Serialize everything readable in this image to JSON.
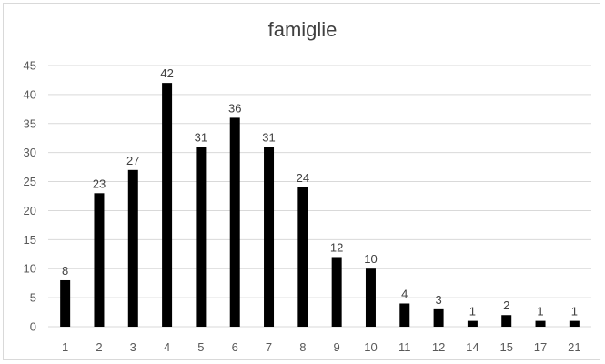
{
  "chart_data": {
    "type": "bar",
    "title": "famiglie",
    "xlabel": "",
    "ylabel": "",
    "categories": [
      "1",
      "2",
      "3",
      "4",
      "5",
      "6",
      "7",
      "8",
      "9",
      "10",
      "11",
      "12",
      "14",
      "15",
      "17",
      "21"
    ],
    "values": [
      8,
      23,
      27,
      42,
      31,
      36,
      31,
      24,
      12,
      10,
      4,
      3,
      1,
      2,
      1,
      1
    ],
    "ylim": [
      0,
      45
    ],
    "yticks": [
      "0",
      "5",
      "10",
      "15",
      "20",
      "25",
      "30",
      "35",
      "40",
      "45"
    ],
    "grid": true,
    "legend": "none",
    "bar_color": "#000000",
    "grid_color": "#d9d9d9"
  }
}
